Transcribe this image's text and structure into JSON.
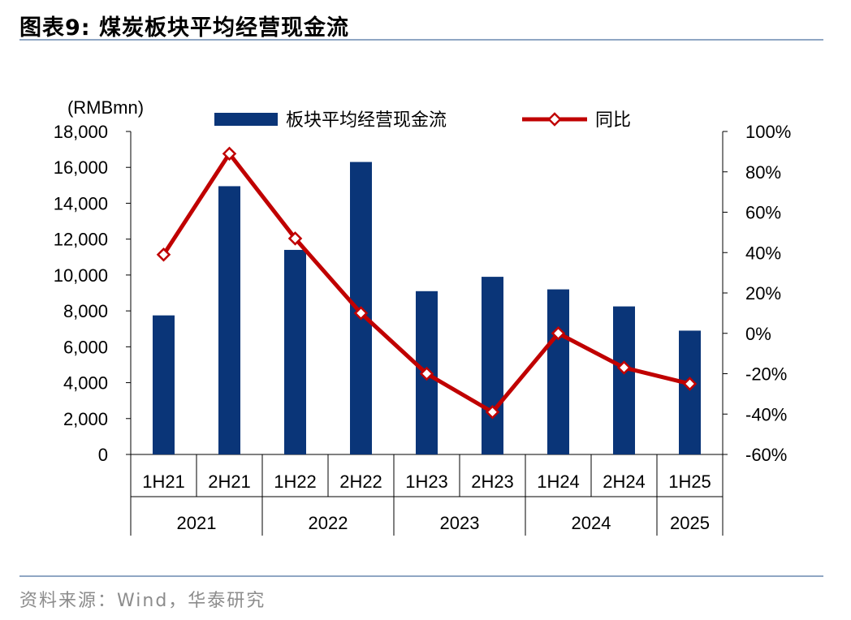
{
  "figure_title": "图表9:  煤炭板块平均经营现金流",
  "source": "资料来源：Wind，华泰研究",
  "colors": {
    "bar": "#0a3578",
    "line": "#c00000",
    "marker_fill": "#ffffff",
    "rule": "#8fa6c4"
  },
  "chart_data": {
    "type": "bar",
    "unit_label": "(RMBmn)",
    "categories": [
      "1H21",
      "2H21",
      "1H22",
      "2H22",
      "1H23",
      "2H23",
      "1H24",
      "2H24",
      "1H25"
    ],
    "year_groups": [
      {
        "label": "2021",
        "span": 2
      },
      {
        "label": "2022",
        "span": 2
      },
      {
        "label": "2023",
        "span": 2
      },
      {
        "label": "2024",
        "span": 2
      },
      {
        "label": "2025",
        "span": 1
      }
    ],
    "series": [
      {
        "name": "板块平均经营现金流",
        "type": "bar",
        "axis": "left",
        "values": [
          7750,
          14950,
          11400,
          16300,
          9100,
          9900,
          9200,
          8250,
          6900
        ]
      },
      {
        "name": "同比",
        "type": "line",
        "axis": "right",
        "values": [
          39,
          89,
          47,
          10,
          -20,
          -39,
          0,
          -17,
          -25
        ]
      }
    ],
    "y_left": {
      "min": 0,
      "max": 18000,
      "ticks": [
        "0",
        "2,000",
        "4,000",
        "6,000",
        "8,000",
        "10,000",
        "12,000",
        "14,000",
        "16,000",
        "18,000"
      ]
    },
    "y_right": {
      "min": -60,
      "max": 100,
      "ticks": [
        "-60%",
        "-40%",
        "-20%",
        "0%",
        "20%",
        "40%",
        "60%",
        "80%",
        "100%"
      ]
    },
    "legend_position": "top",
    "grid": false
  }
}
